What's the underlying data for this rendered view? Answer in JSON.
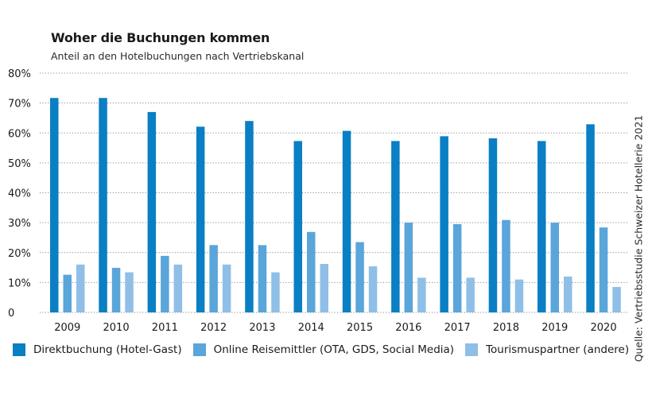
{
  "header": {
    "title": "Woher die Buchungen kommen",
    "subtitle": "Anteil an den Hotelbuchungen nach Vertriebskanal"
  },
  "source": "Quelle: Vertriebsstudie Schweizer Hotellerie 2021",
  "chart_data": {
    "type": "bar",
    "title": "Woher die Buchungen kommen",
    "subtitle": "Anteil an den Hotelbuchungen nach Vertriebskanal",
    "xlabel": "",
    "ylabel": "",
    "ylim": [
      0,
      80
    ],
    "yticks": [
      0,
      10,
      20,
      30,
      40,
      50,
      60,
      70,
      80
    ],
    "ytick_labels": [
      "0",
      "10%",
      "20%",
      "30%",
      "40%",
      "50%",
      "60%",
      "70%",
      "80%"
    ],
    "grid": true,
    "legend_position": "bottom",
    "categories": [
      "2009",
      "2010",
      "2011",
      "2012",
      "2013",
      "2014",
      "2015",
      "2016",
      "2017",
      "2018",
      "2019",
      "2020"
    ],
    "series": [
      {
        "name": "Direktbuchung (Hotel-Gast)",
        "color": "#0a7fc4",
        "values": [
          71.7,
          71.7,
          67.0,
          62.1,
          64.0,
          57.3,
          60.7,
          57.3,
          58.9,
          58.2,
          57.3,
          62.9
        ]
      },
      {
        "name": "Online Reisemittler (OTA, GDS, Social Media)",
        "color": "#5aa5da",
        "values": [
          12.6,
          14.9,
          18.9,
          22.5,
          22.5,
          26.9,
          23.5,
          30.0,
          29.5,
          30.9,
          30.0,
          28.4
        ]
      },
      {
        "name": "Tourismuspartner (andere)",
        "color": "#8fbfe6",
        "values": [
          16.0,
          13.4,
          16.0,
          16.0,
          13.4,
          16.2,
          15.4,
          11.6,
          11.6,
          11.0,
          12.0,
          8.5
        ]
      }
    ],
    "source": "Quelle: Vertriebsstudie Schweizer Hotellerie 2021"
  }
}
